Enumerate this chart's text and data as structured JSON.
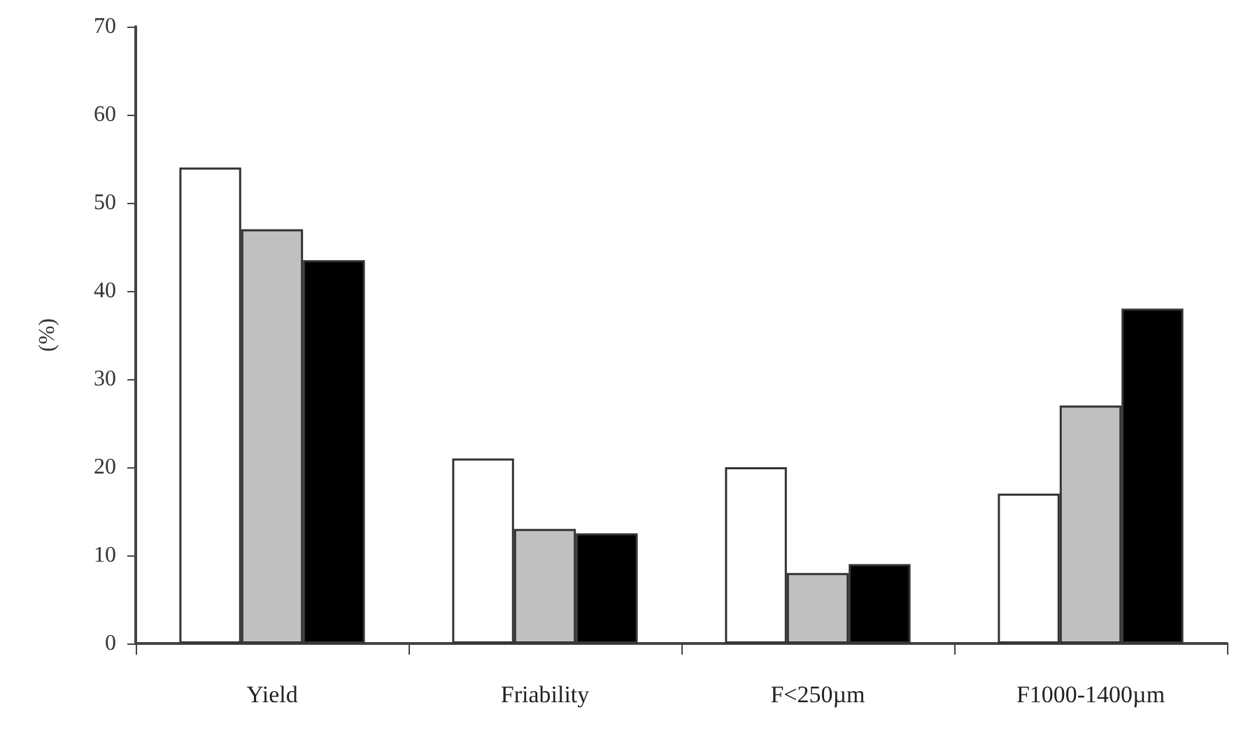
{
  "chart_data": {
    "type": "bar",
    "ylabel": "(%)",
    "categories": [
      "Yield",
      "Friability",
      "F<250µm",
      "F1000-1400µm"
    ],
    "series": [
      {
        "color": "#ffffff",
        "values": [
          54,
          21,
          20,
          17
        ]
      },
      {
        "color": "#c0c0c0",
        "values": [
          47,
          13,
          8,
          27
        ]
      },
      {
        "color": "#000000",
        "values": [
          43.5,
          12.5,
          9,
          38
        ]
      }
    ],
    "ylim": [
      0,
      70
    ],
    "yticks": [
      0,
      10,
      20,
      30,
      40,
      50,
      60,
      70
    ],
    "grid": false
  }
}
